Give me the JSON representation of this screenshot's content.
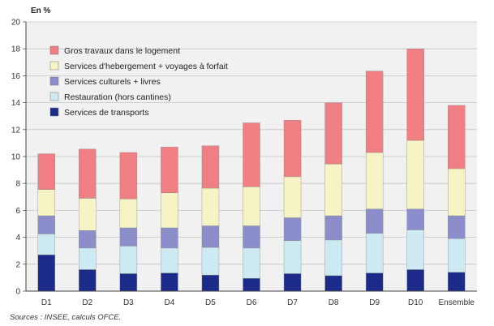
{
  "chart_data": {
    "type": "bar",
    "stacked": true,
    "unit_label": "En %",
    "categories": [
      "D1",
      "D2",
      "D3",
      "D4",
      "D5",
      "D6",
      "D7",
      "D8",
      "D9",
      "D10",
      "Ensemble"
    ],
    "ylim": [
      0,
      20
    ],
    "yticks": [
      0,
      2,
      4,
      6,
      8,
      10,
      12,
      14,
      16,
      18,
      20
    ],
    "grid": true,
    "legend_position": "top-left",
    "series": [
      {
        "name": "Services de transports",
        "color": "#1c2a8a",
        "values": [
          2.7,
          1.6,
          1.3,
          1.35,
          1.2,
          0.95,
          1.3,
          1.15,
          1.35,
          1.6,
          1.4
        ]
      },
      {
        "name": "Restauration (hors cantines)",
        "color": "#cdeaf3",
        "values": [
          1.55,
          1.6,
          2.05,
          1.85,
          2.05,
          2.25,
          2.45,
          2.65,
          2.95,
          2.95,
          2.5
        ]
      },
      {
        "name": "Services culturels + livres",
        "color": "#8c8ecb",
        "values": [
          1.35,
          1.3,
          1.35,
          1.5,
          1.6,
          1.65,
          1.7,
          1.8,
          1.8,
          1.55,
          1.7
        ]
      },
      {
        "name": "Services d'hebergement + voyages à forfait",
        "color": "#f6f3c4",
        "values": [
          1.95,
          2.4,
          2.15,
          2.6,
          2.8,
          2.9,
          3.05,
          3.85,
          4.2,
          5.1,
          3.5
        ]
      },
      {
        "name": "Gros travaux dans le logement",
        "color": "#ef7f82",
        "values": [
          2.65,
          3.65,
          3.45,
          3.4,
          3.15,
          4.75,
          4.2,
          4.55,
          6.05,
          6.8,
          4.7
        ]
      }
    ]
  },
  "legend_order": [
    4,
    3,
    2,
    1,
    0
  ],
  "source": "Sources : INSEE, calculs OFCE."
}
